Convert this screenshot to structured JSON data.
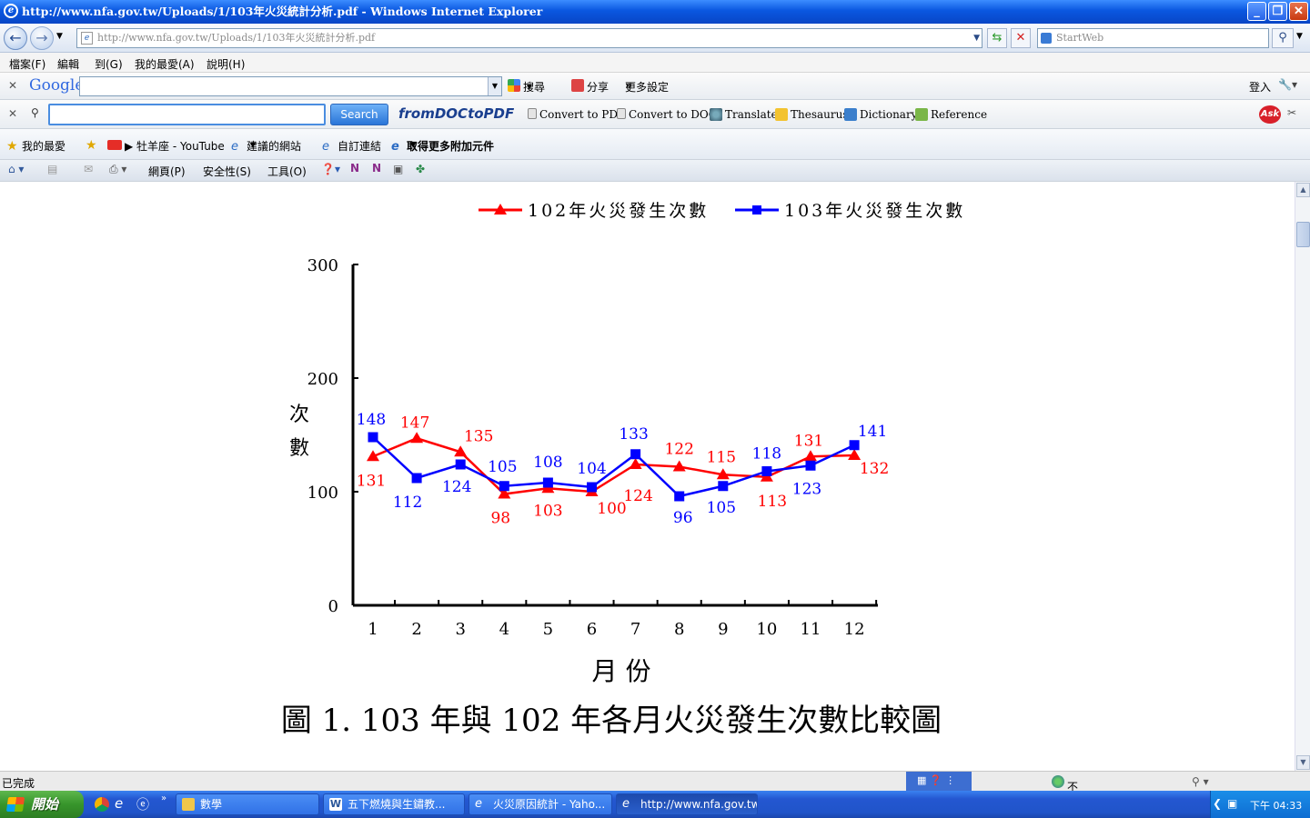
{
  "window": {
    "title": "http://www.nfa.gov.tw/Uploads/1/103年火災統計分析.pdf - Windows Internet Explorer"
  },
  "address": {
    "url": "http://www.nfa.gov.tw/Uploads/1/103年火災統計分析.pdf",
    "search_placeholder": "StartWeb"
  },
  "menu": [
    "檔案(F)",
    "編輯",
    "到(G)",
    "我的最愛(A)",
    "說明(H)"
  ],
  "google_toolbar": {
    "brand": "Google",
    "search_label": "搜尋",
    "share_label": "分享",
    "more_label": "更多設定",
    "login_label": "登入"
  },
  "ask_toolbar": {
    "search_button": "Search",
    "brand": "fromDOCtoPDF",
    "items": [
      "Convert to PDF",
      "Convert to DOC",
      "Translate",
      "Thesaurus",
      "Dictionary",
      "Reference"
    ]
  },
  "favorites_bar": {
    "favorites": "我的最愛",
    "items": [
      "▶ 牡羊座 - YouTube",
      "建議的網站",
      "自訂連結",
      "取得更多附加元件"
    ]
  },
  "command_bar": {
    "items": [
      "網頁(P)",
      "安全性(S)",
      "工具(O)"
    ]
  },
  "status": {
    "text": "已完成",
    "zone": "不明的區域"
  },
  "taskbar": {
    "start": "開始",
    "tasks": [
      "數學",
      "五下燃燒與生鏽教...",
      "火災原因統計 - Yaho...",
      "http://www.nfa.gov.tw/..."
    ],
    "clock": "下午 04:33"
  },
  "colors": {
    "series102": "#ff0000",
    "series103": "#0000ff"
  },
  "chart_data": {
    "type": "line",
    "title": "圖 1. 103 年與 102 年各月火災發生次數比較圖",
    "xlabel": "月 份",
    "ylabel": "次 數",
    "categories": [
      "1",
      "2",
      "3",
      "4",
      "5",
      "6",
      "7",
      "8",
      "9",
      "10",
      "11",
      "12"
    ],
    "ylim": [
      0,
      300
    ],
    "yticks": [
      0,
      100,
      200,
      300
    ],
    "grid": false,
    "legend": "top",
    "series": [
      {
        "name": "102年火災發生次數",
        "marker": "triangle",
        "values": [
          131,
          147,
          135,
          98,
          103,
          100,
          124,
          122,
          115,
          113,
          131,
          132
        ]
      },
      {
        "name": "103年火災發生次數",
        "marker": "square",
        "values": [
          148,
          112,
          124,
          105,
          108,
          104,
          133,
          96,
          105,
          118,
          123,
          141
        ]
      }
    ]
  }
}
